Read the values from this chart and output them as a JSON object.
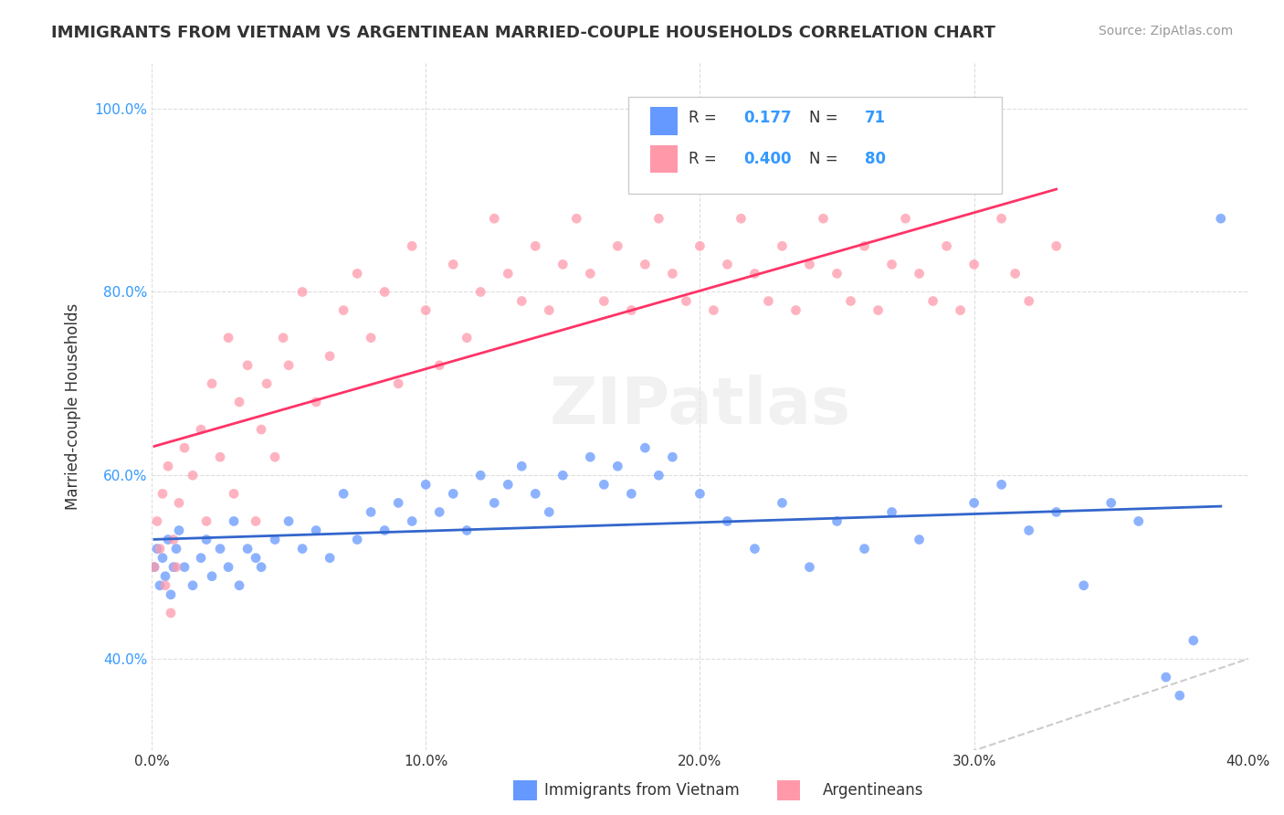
{
  "title": "IMMIGRANTS FROM VIETNAM VS ARGENTINEAN MARRIED-COUPLE HOUSEHOLDS CORRELATION CHART",
  "source": "Source: ZipAtlas.com",
  "xlabel_vietnam": "Immigrants from Vietnam",
  "xlabel_argentineans": "Argentineans",
  "ylabel": "Married-couple Households",
  "watermark": "ZIPatlas",
  "r_vietnam": 0.177,
  "n_vietnam": 71,
  "r_argentineans": 0.4,
  "n_argentineans": 80,
  "xlim": [
    0.0,
    0.4
  ],
  "ylim": [
    0.3,
    1.05
  ],
  "yticks": [
    0.4,
    0.6,
    0.8,
    1.0
  ],
  "ytick_labels": [
    "40.0%",
    "60.0%",
    "80.0%",
    "100.0%"
  ],
  "xtick_labels": [
    "0.0%",
    "10.0%",
    "20.0%",
    "30.0%",
    "40.0%"
  ],
  "xticks": [
    0.0,
    0.1,
    0.2,
    0.3,
    0.4
  ],
  "color_vietnam": "#6699ff",
  "color_argentina": "#ff99aa",
  "trendline_vietnam_color": "#3366cc",
  "trendline_argentina_color": "#ff3366",
  "diagonal_color": "#cccccc",
  "background_color": "#ffffff",
  "vietnam_x": [
    0.001,
    0.002,
    0.003,
    0.004,
    0.005,
    0.006,
    0.007,
    0.008,
    0.009,
    0.01,
    0.012,
    0.015,
    0.018,
    0.02,
    0.022,
    0.025,
    0.028,
    0.03,
    0.032,
    0.035,
    0.038,
    0.04,
    0.045,
    0.05,
    0.055,
    0.06,
    0.065,
    0.07,
    0.075,
    0.08,
    0.085,
    0.09,
    0.095,
    0.1,
    0.105,
    0.11,
    0.115,
    0.12,
    0.125,
    0.13,
    0.135,
    0.14,
    0.145,
    0.15,
    0.16,
    0.165,
    0.17,
    0.175,
    0.18,
    0.185,
    0.19,
    0.2,
    0.21,
    0.22,
    0.23,
    0.24,
    0.25,
    0.26,
    0.27,
    0.28,
    0.3,
    0.31,
    0.32,
    0.33,
    0.34,
    0.35,
    0.36,
    0.37,
    0.375,
    0.38,
    0.39
  ],
  "vietnam_y": [
    0.5,
    0.52,
    0.48,
    0.51,
    0.49,
    0.53,
    0.47,
    0.5,
    0.52,
    0.54,
    0.5,
    0.48,
    0.51,
    0.53,
    0.49,
    0.52,
    0.5,
    0.55,
    0.48,
    0.52,
    0.51,
    0.5,
    0.53,
    0.55,
    0.52,
    0.54,
    0.51,
    0.58,
    0.53,
    0.56,
    0.54,
    0.57,
    0.55,
    0.59,
    0.56,
    0.58,
    0.54,
    0.6,
    0.57,
    0.59,
    0.61,
    0.58,
    0.56,
    0.6,
    0.62,
    0.59,
    0.61,
    0.58,
    0.63,
    0.6,
    0.62,
    0.58,
    0.55,
    0.52,
    0.57,
    0.5,
    0.55,
    0.52,
    0.56,
    0.53,
    0.57,
    0.59,
    0.54,
    0.56,
    0.48,
    0.57,
    0.55,
    0.38,
    0.36,
    0.42,
    0.88
  ],
  "argentina_x": [
    0.001,
    0.002,
    0.003,
    0.004,
    0.005,
    0.006,
    0.007,
    0.008,
    0.009,
    0.01,
    0.012,
    0.015,
    0.018,
    0.02,
    0.022,
    0.025,
    0.028,
    0.03,
    0.032,
    0.035,
    0.038,
    0.04,
    0.042,
    0.045,
    0.048,
    0.05,
    0.055,
    0.06,
    0.065,
    0.07,
    0.075,
    0.08,
    0.085,
    0.09,
    0.095,
    0.1,
    0.105,
    0.11,
    0.115,
    0.12,
    0.125,
    0.13,
    0.135,
    0.14,
    0.145,
    0.15,
    0.155,
    0.16,
    0.165,
    0.17,
    0.175,
    0.18,
    0.185,
    0.19,
    0.195,
    0.2,
    0.205,
    0.21,
    0.215,
    0.22,
    0.225,
    0.23,
    0.235,
    0.24,
    0.245,
    0.25,
    0.255,
    0.26,
    0.265,
    0.27,
    0.275,
    0.28,
    0.285,
    0.29,
    0.295,
    0.3,
    0.31,
    0.315,
    0.32,
    0.33
  ],
  "argentina_y": [
    0.5,
    0.55,
    0.52,
    0.58,
    0.48,
    0.61,
    0.45,
    0.53,
    0.5,
    0.57,
    0.63,
    0.6,
    0.65,
    0.55,
    0.7,
    0.62,
    0.75,
    0.58,
    0.68,
    0.72,
    0.55,
    0.65,
    0.7,
    0.62,
    0.75,
    0.72,
    0.8,
    0.68,
    0.73,
    0.78,
    0.82,
    0.75,
    0.8,
    0.7,
    0.85,
    0.78,
    0.72,
    0.83,
    0.75,
    0.8,
    0.88,
    0.82,
    0.79,
    0.85,
    0.78,
    0.83,
    0.88,
    0.82,
    0.79,
    0.85,
    0.78,
    0.83,
    0.88,
    0.82,
    0.79,
    0.85,
    0.78,
    0.83,
    0.88,
    0.82,
    0.79,
    0.85,
    0.78,
    0.83,
    0.88,
    0.82,
    0.79,
    0.85,
    0.78,
    0.83,
    0.88,
    0.82,
    0.79,
    0.85,
    0.78,
    0.83,
    0.88,
    0.82,
    0.79,
    0.85
  ]
}
